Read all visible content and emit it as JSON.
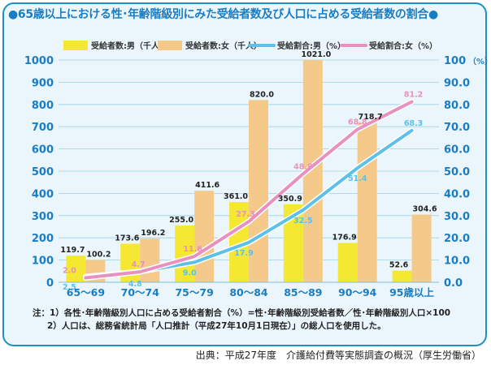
{
  "title": "●65歳以上における性･年齢階級別にみた受給者数及び人口に占める受給者数の割合●",
  "notes": [
    "注：1）各性･年齢階級別人口に占める受給者割合（%）=性･年齢階級別受給者数／性･年齢階級別人口×100",
    "2）人口は、総務省統計局「人口推計（平成27年10月1日現在）」の総人口を使用した。"
  ],
  "source": "出典：平成27年度　介護給付費等実態調査の概況（厚生労働省）",
  "colors": {
    "male_bar": "#F5E832",
    "female_bar": "#F5C98A",
    "male_line": "#5CC0EA",
    "female_line": "#E890C0",
    "title": "#1A7DC4",
    "axis_text": "#1A7DC4"
  },
  "chart_data": {
    "type": "bar",
    "categories": [
      "65～69",
      "70～74",
      "75～79",
      "80～84",
      "85～89",
      "90～94",
      "95歳以上"
    ],
    "series": [
      {
        "name": "受給者数:男（千人）",
        "type": "bar",
        "axis": "left",
        "values": [
          119.7,
          173.6,
          255.0,
          361.0,
          350.9,
          176.9,
          52.6
        ],
        "labels": [
          "119.7",
          "173.6",
          "255.0",
          "361.0",
          "350.9",
          "176.9",
          "52.6"
        ]
      },
      {
        "name": "受給者数:女（千人）",
        "type": "bar",
        "axis": "left",
        "values": [
          100.2,
          196.2,
          411.6,
          820.0,
          1021.0,
          718.7,
          304.6
        ],
        "labels": [
          "100.2",
          "196.2",
          "411.6",
          "820.0",
          "1021.0",
          "718.7",
          "304.6"
        ]
      },
      {
        "name": "受給割合:男（%）",
        "type": "line",
        "axis": "right",
        "values": [
          2.5,
          4.8,
          9.0,
          17.9,
          32.5,
          51.4,
          68.3
        ],
        "labels": [
          "2.5",
          "4.8",
          "9.0",
          "17.9",
          "32.5",
          "51.4",
          "68.3"
        ]
      },
      {
        "name": "受給割合:女（%）",
        "type": "line",
        "axis": "right",
        "values": [
          2.0,
          4.7,
          11.6,
          27.3,
          48.8,
          68.8,
          81.2
        ],
        "labels": [
          "2.0",
          "4.7",
          "11.6",
          "27.3",
          "48.8",
          "68.8",
          "81.2"
        ]
      }
    ],
    "ylim_left": [
      0,
      1000
    ],
    "ylim_right": [
      0,
      100
    ],
    "left_ticks": [
      "0",
      "100",
      "200",
      "300",
      "400",
      "500",
      "600",
      "700",
      "800",
      "900",
      "1000"
    ],
    "right_ticks": [
      "0.0",
      "10.0",
      "20.0",
      "30.0",
      "40.0",
      "50.0",
      "60.0",
      "70.0",
      "80.0",
      "90.0",
      "100"
    ],
    "right_unit": "（%）",
    "grid": true,
    "legend": "top"
  }
}
